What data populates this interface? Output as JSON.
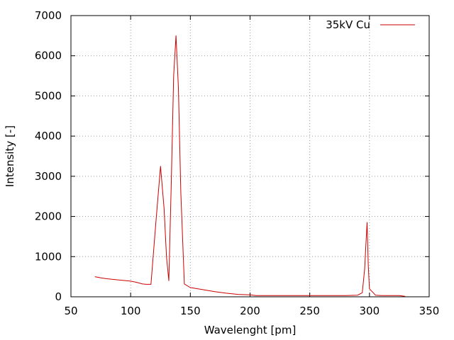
{
  "chart_data": {
    "type": "line",
    "title": "",
    "xlabel": "Wavelenght [pm]",
    "ylabel": "Intensity [-]",
    "xlim": [
      50,
      350
    ],
    "ylim": [
      0,
      7000
    ],
    "x_ticks": [
      "50",
      "100",
      "150",
      "200",
      "250",
      "300",
      "350"
    ],
    "y_ticks": [
      "0",
      "1000",
      "2000",
      "3000",
      "4000",
      "5000",
      "6000",
      "7000"
    ],
    "grid": true,
    "legend_placement": "top-right",
    "series": [
      {
        "name": "35kV Cu",
        "color": "#cc0000",
        "x": [
          70,
          75,
          80,
          90,
          100,
          105,
          110,
          113,
          117,
          121,
          125,
          128,
          130,
          132,
          134,
          136,
          138,
          140,
          142,
          145,
          150,
          160,
          170,
          180,
          190,
          200,
          205,
          210,
          220,
          250,
          280,
          290,
          294,
          296,
          297,
          298,
          299,
          300,
          305,
          310,
          320,
          325,
          330
        ],
        "y": [
          500,
          470,
          450,
          420,
          390,
          360,
          320,
          310,
          310,
          1800,
          3250,
          2200,
          1000,
          400,
          2800,
          5500,
          6500,
          5200,
          2600,
          320,
          230,
          180,
          130,
          90,
          60,
          50,
          30,
          30,
          30,
          30,
          30,
          40,
          100,
          700,
          1300,
          1850,
          800,
          200,
          40,
          30,
          30,
          30,
          10
        ]
      }
    ]
  }
}
